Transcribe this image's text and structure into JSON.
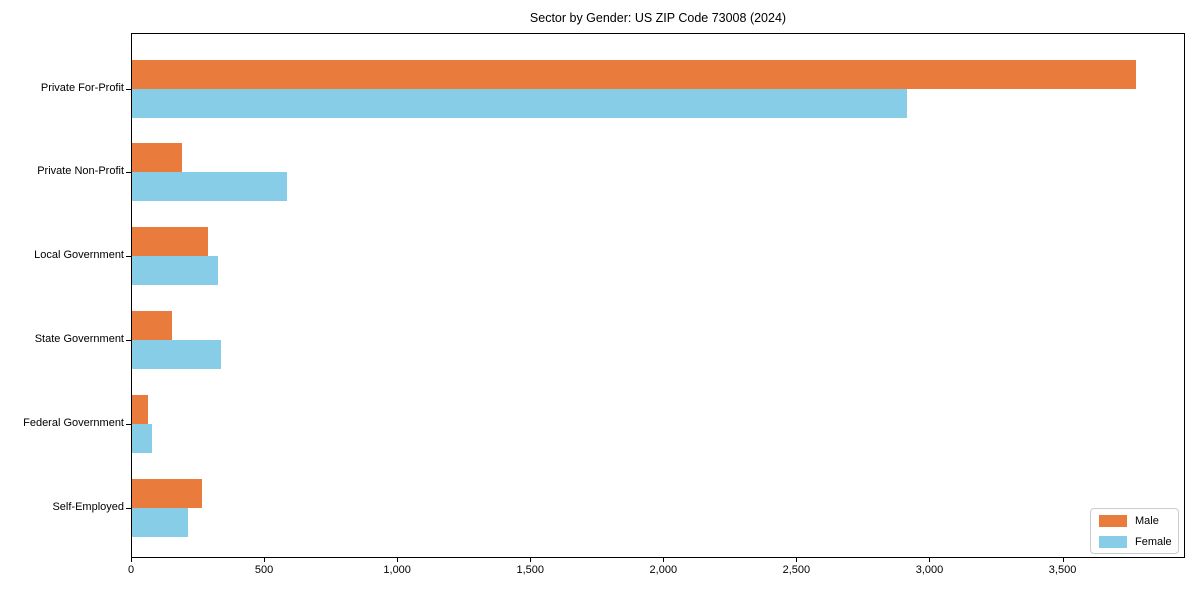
{
  "chart_data": {
    "type": "bar",
    "orientation": "horizontal",
    "title": "Sector by Gender: US ZIP Code 73008 (2024)",
    "categories": [
      "Private For-Profit",
      "Private Non-Profit",
      "Local Government",
      "State Government",
      "Federal Government",
      "Self-Employed"
    ],
    "series": [
      {
        "name": "Male",
        "color": "#e97b3d",
        "values": [
          3775,
          190,
          290,
          155,
          65,
          265
        ]
      },
      {
        "name": "Female",
        "color": "#87cde8",
        "values": [
          2915,
          585,
          325,
          340,
          80,
          215
        ]
      }
    ],
    "xlabel": "",
    "ylabel": "",
    "xlim": [
      0,
      3960
    ],
    "xticks": [
      0,
      500,
      1000,
      1500,
      2000,
      2500,
      3000,
      3500
    ],
    "xtick_labels": [
      "0",
      "500",
      "1,000",
      "1,500",
      "2,000",
      "2,500",
      "3,000",
      "3,500"
    ],
    "grid": false,
    "legend": {
      "position": "lower right",
      "entries": [
        "Male",
        "Female"
      ]
    }
  }
}
